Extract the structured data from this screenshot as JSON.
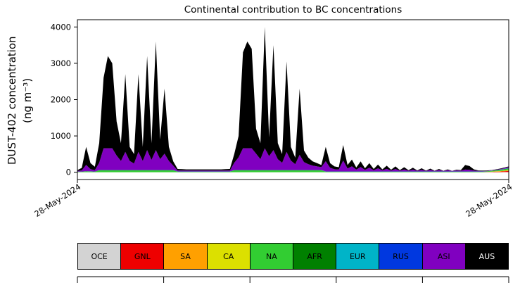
{
  "chart_data": {
    "type": "area",
    "title": "Continental contribution to BC concentrations",
    "ylabel_line1": "DUST-402 concentration",
    "ylabel_line2": "(ng m⁻³)",
    "ylim": [
      -200,
      4200
    ],
    "yticks": [
      0,
      1000,
      2000,
      3000,
      4000
    ],
    "x_tick_labels": [
      "28-May-2024",
      "28-May-2024"
    ],
    "grid": false,
    "legend_position": "bottom",
    "stack_order": [
      "OCE",
      "GNL",
      "SA",
      "CA",
      "NA",
      "AFR",
      "EUR",
      "RUS",
      "ASI",
      "AUS"
    ],
    "legend": [
      {
        "label": "OCE",
        "color": "#d3d3d3",
        "text_color": "#000000"
      },
      {
        "label": "GNL",
        "color": "#ee0000",
        "text_color": "#000000"
      },
      {
        "label": "SA",
        "color": "#ffa000",
        "text_color": "#000000"
      },
      {
        "label": "CA",
        "color": "#dce000",
        "text_color": "#000000"
      },
      {
        "label": "NA",
        "color": "#32cd32",
        "text_color": "#000000"
      },
      {
        "label": "AFR",
        "color": "#008000",
        "text_color": "#000000"
      },
      {
        "label": "EUR",
        "color": "#00b4c8",
        "text_color": "#000000"
      },
      {
        "label": "RUS",
        "color": "#0038e0",
        "text_color": "#000000"
      },
      {
        "label": "ASI",
        "color": "#8000c0",
        "text_color": "#000000"
      },
      {
        "label": "AUS",
        "color": "#000000",
        "text_color": "#ffffff"
      }
    ],
    "series": [
      {
        "name": "OCE",
        "values": [
          1,
          1,
          1,
          1,
          1,
          1,
          1,
          1,
          1,
          1,
          1,
          1,
          1,
          1,
          1,
          1,
          1,
          1,
          1,
          1,
          1,
          1,
          1,
          1,
          1,
          1,
          1,
          1,
          1,
          1,
          1,
          1,
          1,
          1,
          1,
          1,
          1,
          1,
          1,
          1,
          1,
          1,
          1,
          1,
          1,
          1,
          1,
          1,
          1,
          1,
          1,
          1,
          1,
          1,
          1,
          1,
          1,
          1,
          1,
          1,
          1,
          1,
          1,
          1,
          1,
          1,
          1,
          1,
          1,
          1,
          1,
          1,
          1,
          1,
          1,
          1,
          1,
          1,
          1,
          1,
          1,
          1,
          1,
          1,
          1,
          1,
          1,
          1,
          1,
          1,
          1,
          1,
          1,
          1,
          1,
          2,
          3,
          4,
          5,
          6
        ]
      },
      {
        "name": "GNL",
        "values": [
          0,
          0,
          0,
          0,
          0,
          0,
          0,
          0,
          0,
          0,
          0,
          0,
          0,
          0,
          0,
          0,
          0,
          0,
          0,
          0,
          0,
          0,
          0,
          0,
          0,
          0,
          0,
          0,
          0,
          0,
          0,
          0,
          0,
          0,
          0,
          0,
          0,
          0,
          0,
          0,
          0,
          0,
          0,
          0,
          0,
          0,
          0,
          0,
          0,
          0,
          0,
          0,
          0,
          0,
          0,
          0,
          0,
          0,
          0,
          0,
          0,
          0,
          0,
          0,
          0,
          0,
          0,
          0,
          0,
          0,
          0,
          0,
          0,
          0,
          0,
          0,
          0,
          0,
          0,
          0,
          0,
          0,
          0,
          0,
          0,
          0,
          0,
          0,
          0,
          0,
          0,
          0,
          0,
          0,
          4,
          8,
          12,
          16,
          22,
          28
        ]
      },
      {
        "name": "SA",
        "values": [
          0,
          0,
          0,
          0,
          0,
          0,
          0,
          0,
          0,
          0,
          0,
          0,
          0,
          0,
          0,
          0,
          0,
          0,
          0,
          0,
          0,
          0,
          0,
          0,
          0,
          0,
          0,
          0,
          0,
          0,
          0,
          0,
          0,
          0,
          0,
          0,
          0,
          0,
          0,
          0,
          0,
          0,
          0,
          0,
          0,
          0,
          0,
          0,
          0,
          0,
          0,
          0,
          0,
          0,
          0,
          0,
          0,
          0,
          0,
          0,
          0,
          0,
          0,
          0,
          0,
          0,
          0,
          0,
          0,
          0,
          0,
          0,
          0,
          0,
          0,
          0,
          0,
          0,
          0,
          0,
          0,
          0,
          0,
          0,
          0,
          0,
          0,
          0,
          0,
          0,
          0,
          0,
          0,
          0,
          3,
          5,
          8,
          10,
          14,
          18
        ]
      },
      {
        "name": "CA",
        "values": [
          1,
          1,
          1,
          1,
          1,
          1,
          1,
          1,
          1,
          1,
          1,
          1,
          1,
          1,
          1,
          1,
          1,
          1,
          1,
          1,
          1,
          1,
          1,
          1,
          1,
          1,
          1,
          1,
          1,
          1,
          1,
          1,
          1,
          1,
          1,
          1,
          1,
          1,
          1,
          1,
          1,
          1,
          1,
          1,
          1,
          1,
          1,
          1,
          1,
          1,
          1,
          1,
          1,
          1,
          1,
          1,
          1,
          1,
          1,
          1,
          1,
          1,
          1,
          1,
          1,
          1,
          1,
          1,
          1,
          1,
          1,
          1,
          1,
          1,
          1,
          1,
          1,
          1,
          1,
          1,
          1,
          1,
          1,
          1,
          1,
          1,
          1,
          1,
          1,
          1,
          1,
          1,
          1,
          1,
          2,
          3,
          4,
          5,
          7,
          9
        ]
      },
      {
        "name": "NA",
        "values": [
          10,
          10,
          20,
          15,
          10,
          50,
          50,
          50,
          50,
          50,
          50,
          50,
          50,
          50,
          50,
          50,
          50,
          50,
          50,
          50,
          50,
          50,
          50,
          12,
          12,
          12,
          12,
          12,
          12,
          12,
          12,
          12,
          12,
          12,
          12,
          12,
          50,
          50,
          50,
          50,
          50,
          50,
          50,
          50,
          50,
          50,
          50,
          50,
          50,
          50,
          50,
          50,
          50,
          50,
          50,
          50,
          50,
          12,
          12,
          12,
          12,
          12,
          12,
          12,
          12,
          12,
          12,
          12,
          12,
          12,
          12,
          12,
          12,
          12,
          12,
          12,
          12,
          12,
          12,
          12,
          12,
          12,
          12,
          12,
          12,
          12,
          12,
          12,
          12,
          12,
          12,
          12,
          12,
          12,
          14,
          18,
          22,
          26,
          32,
          38
        ]
      },
      {
        "name": "AFR",
        "values": [
          5,
          5,
          5,
          5,
          5,
          5,
          5,
          5,
          5,
          5,
          5,
          5,
          5,
          5,
          5,
          5,
          5,
          5,
          5,
          5,
          5,
          5,
          5,
          5,
          5,
          5,
          5,
          5,
          5,
          5,
          5,
          5,
          5,
          5,
          5,
          5,
          5,
          5,
          5,
          5,
          5,
          5,
          5,
          5,
          5,
          5,
          5,
          5,
          5,
          5,
          5,
          5,
          5,
          5,
          5,
          5,
          5,
          5,
          5,
          5,
          5,
          5,
          5,
          5,
          5,
          5,
          5,
          5,
          5,
          5,
          5,
          5,
          5,
          5,
          5,
          5,
          5,
          5,
          5,
          5,
          5,
          5,
          5,
          5,
          5,
          5,
          5,
          5,
          5,
          5,
          5,
          5,
          5,
          5,
          3,
          4,
          5,
          6,
          8,
          10
        ]
      },
      {
        "name": "EUR",
        "values": [
          2,
          2,
          2,
          2,
          2,
          2,
          2,
          2,
          2,
          2,
          2,
          2,
          2,
          2,
          2,
          2,
          2,
          2,
          2,
          2,
          2,
          2,
          2,
          2,
          2,
          2,
          2,
          2,
          2,
          2,
          2,
          2,
          2,
          2,
          2,
          2,
          2,
          2,
          2,
          2,
          2,
          2,
          2,
          2,
          2,
          2,
          2,
          2,
          2,
          2,
          2,
          2,
          2,
          2,
          2,
          2,
          2,
          2,
          2,
          2,
          2,
          2,
          2,
          2,
          2,
          2,
          2,
          2,
          2,
          2,
          2,
          2,
          2,
          2,
          2,
          2,
          2,
          2,
          2,
          2,
          2,
          2,
          2,
          2,
          2,
          2,
          2,
          2,
          2,
          2,
          2,
          2,
          2,
          2,
          1,
          2,
          2,
          3,
          4,
          5
        ]
      },
      {
        "name": "RUS",
        "values": [
          2,
          2,
          2,
          2,
          2,
          2,
          2,
          2,
          2,
          2,
          2,
          2,
          2,
          2,
          2,
          2,
          2,
          2,
          2,
          2,
          2,
          2,
          2,
          2,
          2,
          2,
          2,
          2,
          2,
          2,
          2,
          2,
          2,
          2,
          2,
          2,
          2,
          2,
          2,
          2,
          2,
          2,
          2,
          2,
          2,
          2,
          2,
          2,
          2,
          2,
          2,
          2,
          2,
          2,
          2,
          2,
          2,
          2,
          2,
          2,
          2,
          2,
          2,
          2,
          2,
          2,
          2,
          2,
          2,
          2,
          2,
          2,
          2,
          2,
          2,
          2,
          2,
          2,
          2,
          2,
          2,
          2,
          2,
          2,
          2,
          2,
          2,
          2,
          2,
          2,
          2,
          2,
          2,
          2,
          1,
          2,
          2,
          3,
          4,
          5
        ]
      },
      {
        "name": "ASI",
        "values": [
          15,
          30,
          170,
          60,
          35,
          200,
          600,
          600,
          600,
          400,
          250,
          500,
          250,
          180,
          500,
          250,
          550,
          280,
          550,
          300,
          450,
          250,
          120,
          25,
          25,
          25,
          25,
          25,
          25,
          25,
          25,
          25,
          25,
          25,
          25,
          25,
          200,
          350,
          600,
          600,
          600,
          450,
          300,
          600,
          380,
          550,
          300,
          200,
          500,
          260,
          160,
          420,
          220,
          160,
          120,
          100,
          80,
          280,
          100,
          60,
          55,
          300,
          80,
          140,
          50,
          120,
          45,
          100,
          35,
          85,
          30,
          70,
          25,
          65,
          22,
          55,
          20,
          50,
          18,
          45,
          16,
          40,
          15,
          36,
          14,
          32,
          13,
          28,
          22,
          50,
          45,
          25,
          15,
          12,
          9,
          10,
          12,
          14,
          18,
          22
        ]
      },
      {
        "name": "AUS",
        "values": [
          24,
          69,
          499,
          164,
          94,
          539,
          1939,
          2539,
          2339,
          939,
          489,
          2139,
          389,
          259,
          2139,
          389,
          2589,
          459,
          2989,
          539,
          1789,
          389,
          119,
          42,
          37,
          32,
          32,
          32,
          32,
          32,
          32,
          32,
          32,
          32,
          37,
          42,
          239,
          589,
          2639,
          2939,
          2739,
          689,
          439,
          3339,
          519,
          2889,
          439,
          239,
          2489,
          379,
          179,
          1819,
          319,
          179,
          119,
          89,
          59,
          397,
          127,
          77,
          62,
          427,
          97,
          187,
          57,
          157,
          42,
          127,
          32,
          102,
          27,
          87,
          22,
          72,
          15,
          62,
          12,
          52,
          9,
          42,
          6,
          37,
          4,
          31,
          3,
          25,
          2,
          19,
          15,
          127,
          102,
          32,
          12,
          11,
          12,
          6,
          10,
          13,
          16,
          19
        ]
      }
    ]
  }
}
